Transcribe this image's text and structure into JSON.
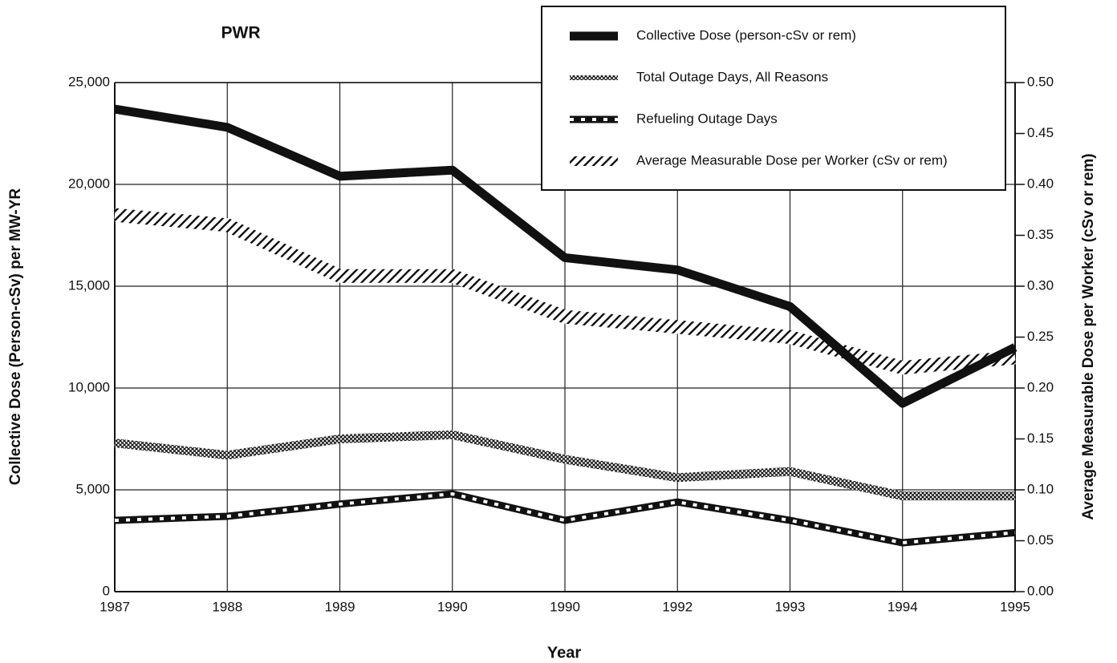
{
  "chart_data": {
    "type": "line",
    "title": "PWR",
    "x_label": "Year",
    "y_label": "Collective Dose (Person-cSv) per MW-YR",
    "y2_label": "Average Measurable Dose per Worker (cSv or rem)",
    "categories": [
      "1987",
      "1988",
      "1989",
      "1990",
      "1990",
      "1992",
      "1993",
      "1994",
      "1995"
    ],
    "ylim": [
      0,
      25000
    ],
    "yticks": [
      0,
      {
        "value": 5000,
        "label": "5,000"
      },
      {
        "value": 10000,
        "label": "10,000"
      },
      {
        "value": 15000,
        "label": "15,000"
      },
      {
        "value": 20000,
        "label": "20,000"
      },
      {
        "value": 25000,
        "label": "25,000"
      }
    ],
    "y2lim": [
      0,
      0.5
    ],
    "y2ticks": [
      {
        "value": 0,
        "label": "0.00"
      },
      0.05,
      {
        "value": 0.1,
        "label": "0.10"
      },
      0.15,
      {
        "value": 0.2,
        "label": "0.20"
      },
      0.25,
      {
        "value": 0.3,
        "label": "0.30"
      },
      0.35,
      {
        "value": 0.4,
        "label": "0.40"
      },
      0.45,
      {
        "value": 0.5,
        "label": "0.50"
      }
    ],
    "grid": true,
    "legend": "upper right",
    "series": [
      {
        "name": "Collective Dose (person-cSv or rem)",
        "color": "#111111",
        "values": [
          23700,
          22800,
          20400,
          20700,
          16400,
          15800,
          14000,
          9250,
          12000
        ]
      },
      {
        "name": "Total Outage Days, All Reasons",
        "color": "#111111",
        "values": [
          7300,
          6700,
          7500,
          7700,
          6500,
          5600,
          5900,
          4700,
          4700
        ]
      },
      {
        "name": "Refueling Outage Days",
        "color": "#111111",
        "values": [
          3500,
          3700,
          4300,
          4800,
          3500,
          4400,
          3500,
          2400,
          2900
        ]
      },
      {
        "name": "Average Measurable Dose per Worker (cSv or rem)",
        "color": "#111111",
        "axis": "y2",
        "values": [
          0.37,
          0.36,
          0.31,
          0.31,
          0.27,
          0.26,
          0.25,
          0.22,
          0.23
        ]
      }
    ]
  }
}
